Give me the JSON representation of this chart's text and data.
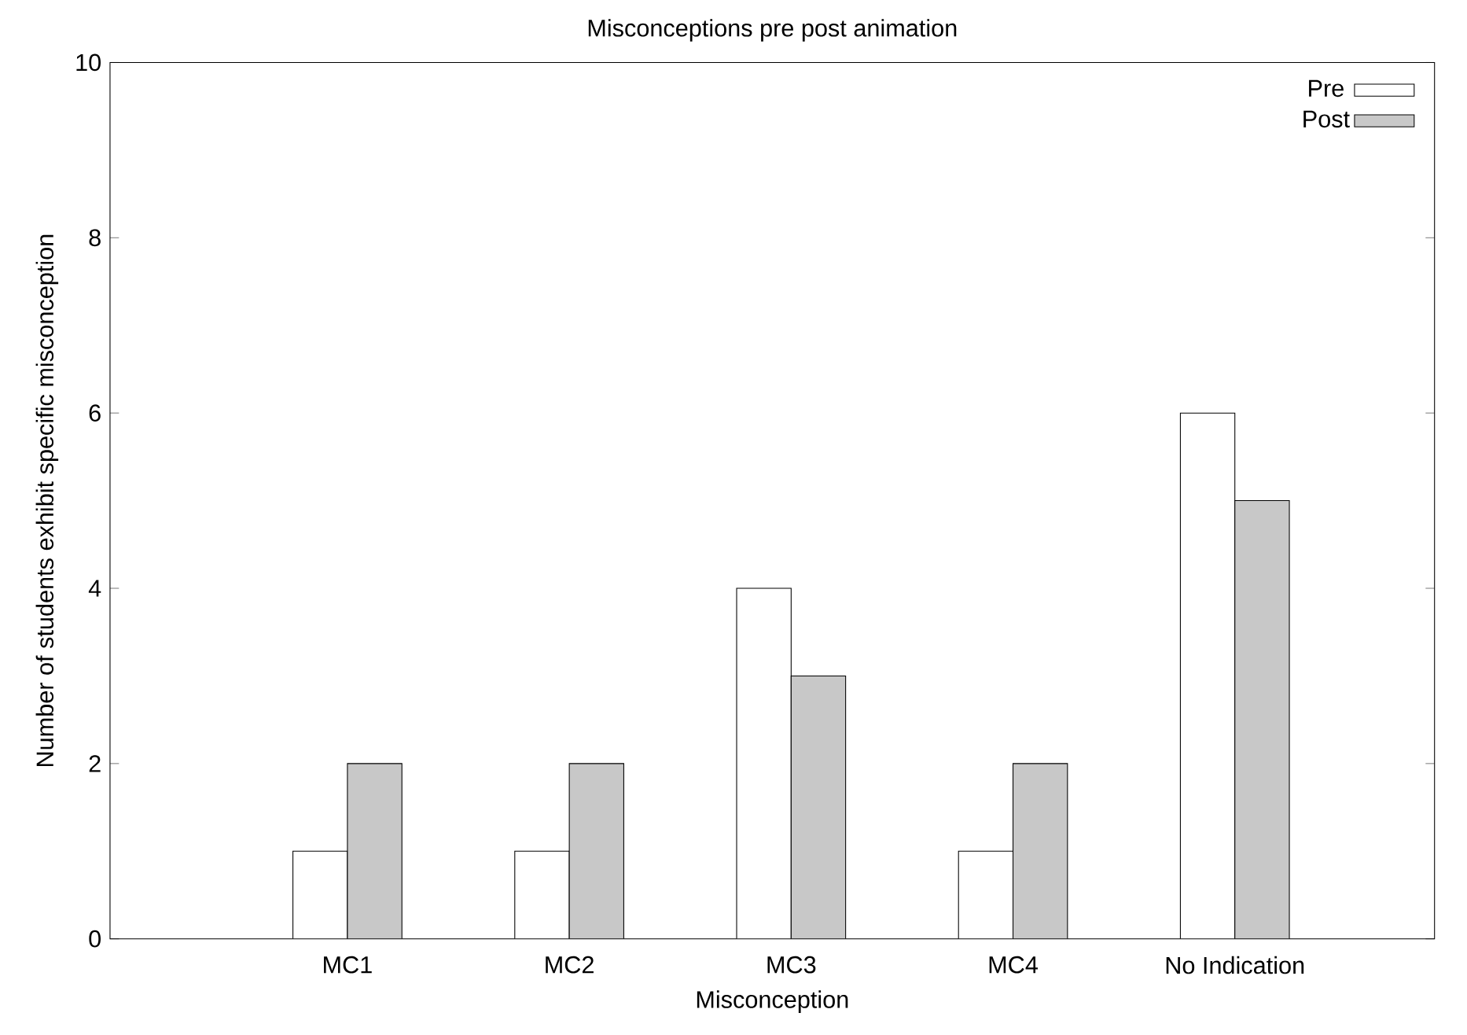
{
  "chart_data": {
    "type": "bar",
    "title": "Misconceptions pre post animation",
    "xlabel": "Misconception",
    "ylabel": "Number of students exhibit specific misconception",
    "categories": [
      "MC1",
      "MC2",
      "MC3",
      "MC4",
      "No Indication"
    ],
    "series": [
      {
        "name": "Pre",
        "color": "#ffffff",
        "values": [
          1,
          1,
          4,
          1,
          6
        ]
      },
      {
        "name": "Post",
        "color": "#c8c8c8",
        "values": [
          2,
          2,
          3,
          2,
          5
        ]
      }
    ],
    "ylim": [
      0,
      10
    ],
    "yticks": [
      0,
      2,
      4,
      6,
      8,
      10
    ],
    "grid": false,
    "legend": "top right"
  }
}
